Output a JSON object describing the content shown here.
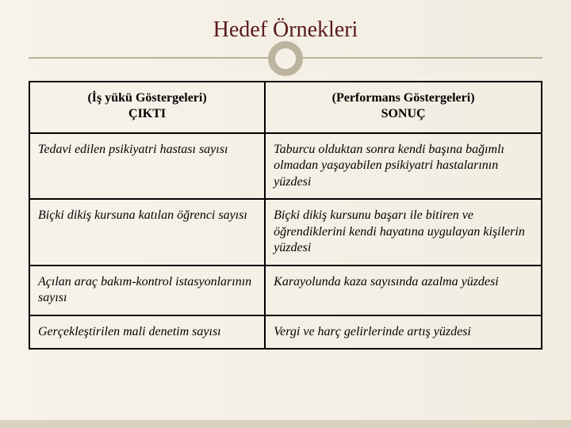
{
  "title": "Hedef Örnekleri",
  "colors": {
    "background": "#f5f1e8",
    "title_color": "#5a1a1a",
    "divider": "#b9b19a",
    "ring_border": "#bcb49e",
    "footer_bar": "#d9d2bf",
    "table_border": "#000000",
    "text_color": "#000000"
  },
  "typography": {
    "title_fontsize": 28,
    "cell_fontsize": 16,
    "font_family": "Georgia, serif"
  },
  "table": {
    "type": "table",
    "columns": [
      {
        "line1": "(İş yükü Göstergeleri)",
        "line2": "ÇIKTI",
        "width_pct": 46
      },
      {
        "line1": "(Performans Göstergeleri)",
        "line2": "SONUÇ",
        "width_pct": 54
      }
    ],
    "rows": [
      [
        "Tedavi edilen psikiyatri hastası sayısı",
        "Taburcu olduktan sonra kendi başına bağımlı olmadan yaşayabilen psikiyatri hastalarının yüzdesi"
      ],
      [
        "Biçki dikiş kursuna katılan öğrenci sayısı",
        "Biçki dikiş kursunu başarı ile bitiren ve öğrendiklerini kendi hayatına uygulayan kişilerin yüzdesi"
      ],
      [
        "Açılan araç bakım-kontrol istasyonlarının sayısı",
        "Karayolunda kaza sayısında azalma yüzdesi"
      ],
      [
        "Gerçekleştirilen mali denetim sayısı",
        "Vergi ve harç gelirlerinde artış yüzdesi"
      ]
    ]
  }
}
